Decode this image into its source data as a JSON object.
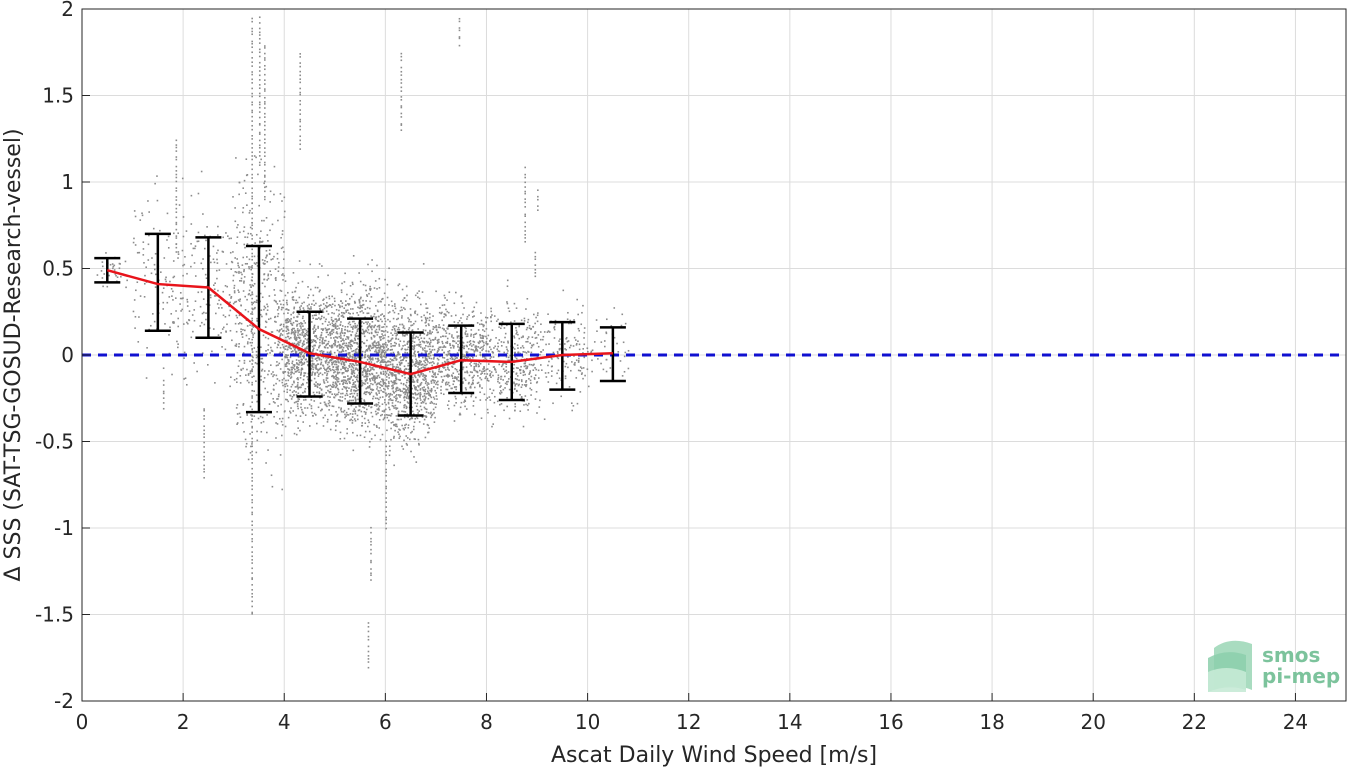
{
  "chart_data": {
    "type": "scatter",
    "xlabel": "Ascat Daily Wind Speed [m/s]",
    "ylabel": "Δ SSS (SAT-TSG-GOSUD-Research-vessel)",
    "xlim": [
      0,
      25
    ],
    "ylim": [
      -2,
      2
    ],
    "xticks": [
      "0",
      "2",
      "4",
      "6",
      "8",
      "10",
      "12",
      "14",
      "16",
      "18",
      "20",
      "22",
      "24"
    ],
    "yticks": [
      "-2",
      "-1.5",
      "-1",
      "-0.5",
      "0",
      "0.5",
      "1",
      "1.5",
      "2"
    ],
    "grid": true,
    "colors": {
      "scatter": "#8c8c8c",
      "mean": "#e8141b",
      "errorbar": "#000000",
      "zero": "#1010d0",
      "logo": "#7cc39c"
    },
    "scatter_clusters": [
      {
        "x": [
          0.2,
          1.0
        ],
        "y_mean": 0.48,
        "y_sd": 0.05,
        "n": 30
      },
      {
        "x": [
          1.0,
          2.0
        ],
        "y_mean": 0.45,
        "y_sd": 0.25,
        "n": 120
      },
      {
        "x": [
          2.0,
          3.0
        ],
        "y_mean": 0.4,
        "y_sd": 0.25,
        "n": 150
      },
      {
        "x": [
          3.0,
          4.0
        ],
        "y_mean": 0.2,
        "y_sd": 0.38,
        "n": 500
      },
      {
        "x": [
          4.0,
          5.0
        ],
        "y_mean": 0.02,
        "y_sd": 0.18,
        "n": 900
      },
      {
        "x": [
          5.0,
          6.0
        ],
        "y_mean": -0.02,
        "y_sd": 0.2,
        "n": 1100
      },
      {
        "x": [
          6.0,
          7.0
        ],
        "y_mean": -0.08,
        "y_sd": 0.2,
        "n": 900
      },
      {
        "x": [
          7.0,
          8.0
        ],
        "y_mean": 0.0,
        "y_sd": 0.15,
        "n": 500
      },
      {
        "x": [
          8.0,
          9.0
        ],
        "y_mean": -0.02,
        "y_sd": 0.16,
        "n": 350
      },
      {
        "x": [
          9.0,
          10.0
        ],
        "y_mean": 0.0,
        "y_sd": 0.14,
        "n": 150
      },
      {
        "x": [
          10.0,
          10.8
        ],
        "y_mean": 0.05,
        "y_sd": 0.1,
        "n": 40
      }
    ],
    "scatter_outliers": [
      {
        "x": 3.35,
        "y": [
          -1.5,
          1.95
        ]
      },
      {
        "x": 3.5,
        "y": [
          1.1,
          1.95
        ]
      },
      {
        "x": 3.6,
        "y": [
          0.9,
          1.8
        ]
      },
      {
        "x": 4.3,
        "y": [
          1.2,
          1.75
        ]
      },
      {
        "x": 5.65,
        "y": [
          -1.8,
          -1.55
        ]
      },
      {
        "x": 5.7,
        "y": [
          -1.3,
          -1.0
        ]
      },
      {
        "x": 6.3,
        "y": [
          1.3,
          1.75
        ]
      },
      {
        "x": 6.0,
        "y": [
          -1.0,
          -0.5
        ]
      },
      {
        "x": 7.45,
        "y": [
          1.8,
          1.95
        ]
      },
      {
        "x": 8.75,
        "y": [
          0.65,
          1.08
        ]
      },
      {
        "x": 9.0,
        "y": [
          0.85,
          0.95
        ]
      },
      {
        "x": 8.95,
        "y": [
          0.45,
          0.6
        ]
      },
      {
        "x": 1.85,
        "y": [
          0.6,
          1.25
        ]
      },
      {
        "x": 2.4,
        "y": [
          -0.7,
          -0.3
        ]
      },
      {
        "x": 1.6,
        "y": [
          -0.3,
          -0.15
        ]
      }
    ],
    "mean_line": {
      "x": [
        0.5,
        1.5,
        2.5,
        3.5,
        4.5,
        5.5,
        6.5,
        7.5,
        8.5,
        9.5,
        10.5
      ],
      "y": [
        0.49,
        0.41,
        0.39,
        0.15,
        0.01,
        -0.04,
        -0.11,
        -0.03,
        -0.04,
        0.0,
        0.01
      ]
    },
    "error_bars": [
      {
        "x": 0.5,
        "low": 0.42,
        "high": 0.56
      },
      {
        "x": 1.5,
        "low": 0.14,
        "high": 0.7
      },
      {
        "x": 2.5,
        "low": 0.1,
        "high": 0.68
      },
      {
        "x": 3.5,
        "low": -0.33,
        "high": 0.63
      },
      {
        "x": 4.5,
        "low": -0.24,
        "high": 0.25
      },
      {
        "x": 5.5,
        "low": -0.28,
        "high": 0.21
      },
      {
        "x": 6.5,
        "low": -0.35,
        "high": 0.13
      },
      {
        "x": 7.5,
        "low": -0.22,
        "high": 0.17
      },
      {
        "x": 8.5,
        "low": -0.26,
        "high": 0.18
      },
      {
        "x": 9.5,
        "low": -0.2,
        "high": 0.19
      },
      {
        "x": 10.5,
        "low": -0.15,
        "high": 0.16
      }
    ],
    "reference_line": {
      "y": 0,
      "style": "dashed"
    }
  },
  "logo": {
    "line1": "smos",
    "line2": "pi-mep"
  }
}
